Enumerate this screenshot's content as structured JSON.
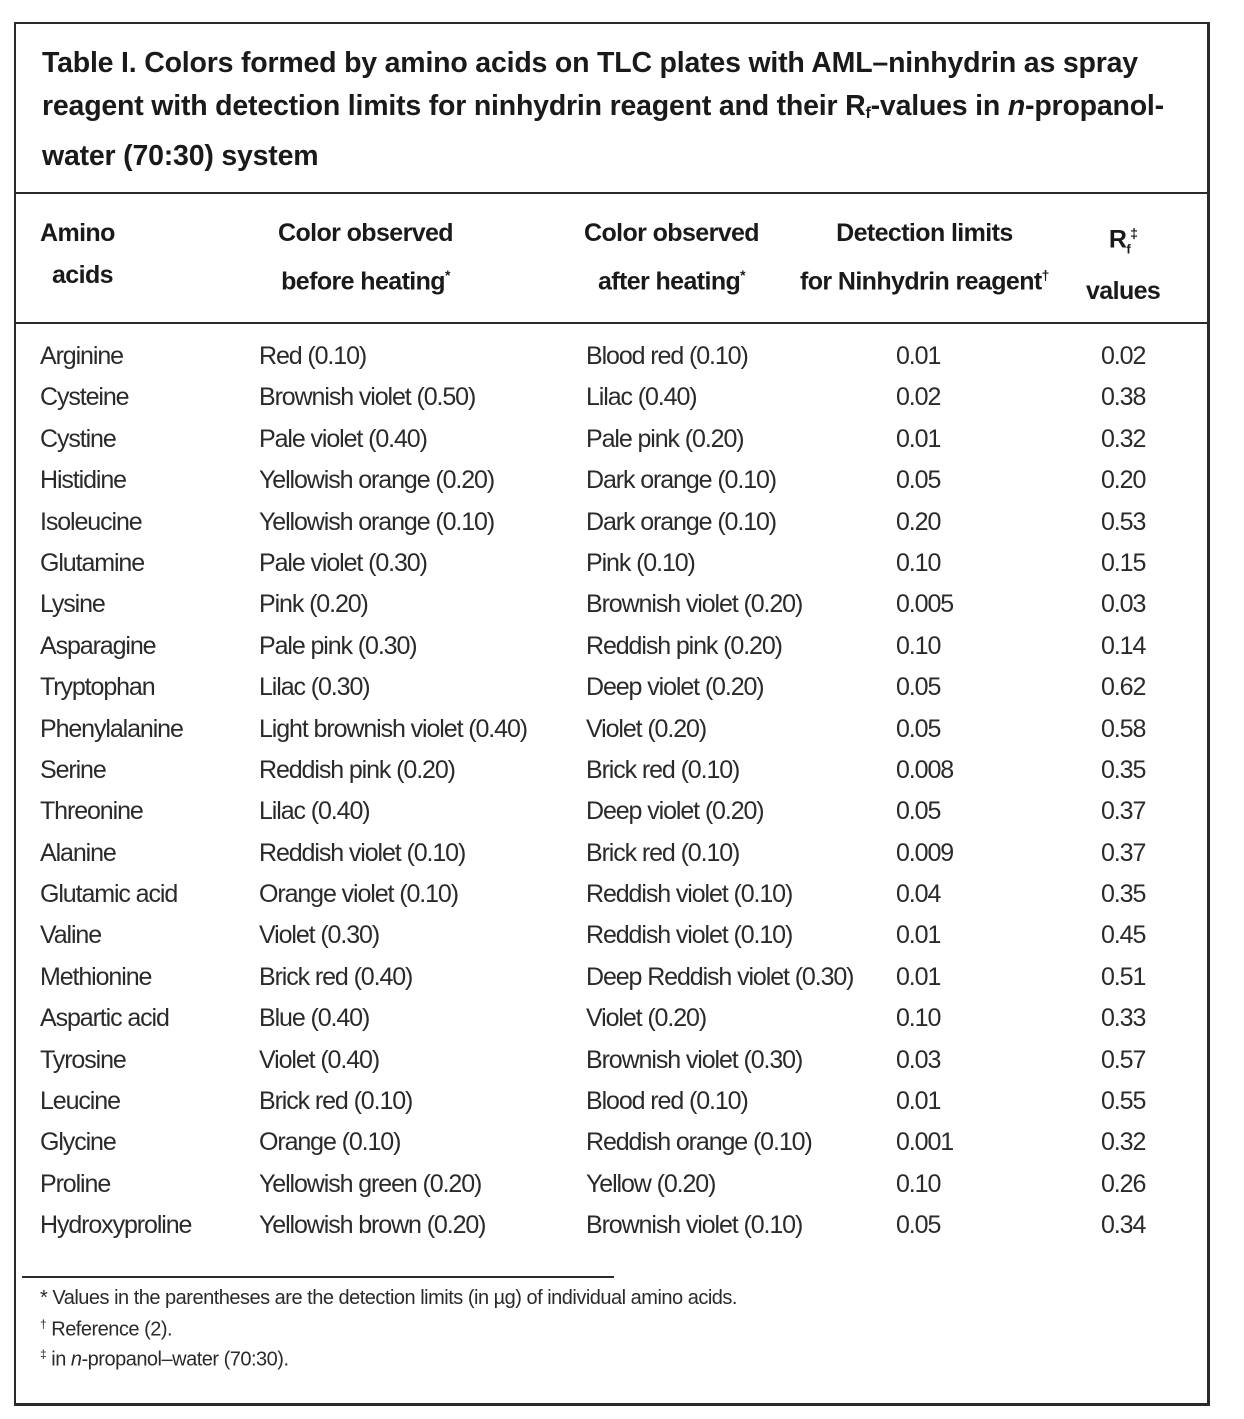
{
  "title": {
    "line1": "Table I. Colors formed by amino acids on TLC plates with AML–ninhydrin as spray",
    "line2a": "reagent with detection limits for ninhydrin reagent and their R",
    "line2sub": "f",
    "line2b": "-values in ",
    "line2i": "n",
    "line2c": "-propanol-",
    "line3": "water (70:30) system"
  },
  "headers": {
    "col1_l1": "Amino",
    "col1_l2": "acids",
    "col2_l1": "Color observed",
    "col2_l2": "before heating",
    "col2_mark": "*",
    "col3_l1": "Color observed",
    "col3_l2": "after heating",
    "col3_mark": "*",
    "col4_l1": "Detection limits",
    "col4_l2": "for Ninhydrin reagent",
    "col4_mark": "†",
    "col5_l1a": "R",
    "col5_l1sub": "f",
    "col5_mark": "‡",
    "col5_l2": "values"
  },
  "rows": [
    {
      "amino": "Arginine",
      "before": "Red (0.10)",
      "after": "Blood red (0.10)",
      "limit": "0.01",
      "rf": "0.02"
    },
    {
      "amino": "Cysteine",
      "before": "Brownish violet (0.50)",
      "after": "Lilac (0.40)",
      "limit": "0.02",
      "rf": "0.38"
    },
    {
      "amino": "Cystine",
      "before": "Pale violet (0.40)",
      "after": "Pale pink (0.20)",
      "limit": "0.01",
      "rf": "0.32"
    },
    {
      "amino": "Histidine",
      "before": "Yellowish orange (0.20)",
      "after": "Dark orange (0.10)",
      "limit": "0.05",
      "rf": "0.20"
    },
    {
      "amino": "Isoleucine",
      "before": "Yellowish orange (0.10)",
      "after": "Dark orange (0.10)",
      "limit": "0.20",
      "rf": "0.53"
    },
    {
      "amino": "Glutamine",
      "before": "Pale violet (0.30)",
      "after": "Pink (0.10)",
      "limit": "0.10",
      "rf": "0.15"
    },
    {
      "amino": "Lysine",
      "before": "Pink (0.20)",
      "after": "Brownish violet (0.20)",
      "limit": "0.005",
      "rf": "0.03"
    },
    {
      "amino": "Asparagine",
      "before": "Pale pink (0.30)",
      "after": "Reddish pink (0.20)",
      "limit": "0.10",
      "rf": "0.14"
    },
    {
      "amino": "Tryptophan",
      "before": "Lilac (0.30)",
      "after": "Deep violet (0.20)",
      "limit": "0.05",
      "rf": "0.62"
    },
    {
      "amino": "Phenylalanine",
      "before": "Light brownish violet (0.40)",
      "after": "Violet (0.20)",
      "limit": "0.05",
      "rf": "0.58"
    },
    {
      "amino": "Serine",
      "before": "Reddish pink (0.20)",
      "after": "Brick red (0.10)",
      "limit": "0.008",
      "rf": "0.35"
    },
    {
      "amino": "Threonine",
      "before": "Lilac (0.40)",
      "after": "Deep violet (0.20)",
      "limit": "0.05",
      "rf": "0.37"
    },
    {
      "amino": "Alanine",
      "before": "Reddish violet (0.10)",
      "after": "Brick red (0.10)",
      "limit": "0.009",
      "rf": "0.37"
    },
    {
      "amino": "Glutamic acid",
      "before": "Orange violet (0.10)",
      "after": "Reddish violet (0.10)",
      "limit": "0.04",
      "rf": "0.35"
    },
    {
      "amino": "Valine",
      "before": "Violet (0.30)",
      "after": "Reddish violet (0.10)",
      "limit": "0.01",
      "rf": "0.45"
    },
    {
      "amino": "Methionine",
      "before": "Brick red (0.40)",
      "after": "Deep Reddish violet (0.30)",
      "limit": "0.01",
      "rf": "0.51"
    },
    {
      "amino": "Aspartic acid",
      "before": "Blue (0.40)",
      "after": "Violet (0.20)",
      "limit": "0.10",
      "rf": "0.33"
    },
    {
      "amino": "Tyrosine",
      "before": "Violet (0.40)",
      "after": "Brownish violet (0.30)",
      "limit": "0.03",
      "rf": "0.57"
    },
    {
      "amino": "Leucine",
      "before": "Brick red (0.10)",
      "after": "Blood red (0.10)",
      "limit": "0.01",
      "rf": "0.55"
    },
    {
      "amino": "Glycine",
      "before": "Orange (0.10)",
      "after": "Reddish orange (0.10)",
      "limit": "0.001",
      "rf": "0.32"
    },
    {
      "amino": "Proline",
      "before": "Yellowish green (0.20)",
      "after": "Yellow (0.20)",
      "limit": "0.10",
      "rf": "0.26"
    },
    {
      "amino": "Hydroxyproline",
      "before": "Yellowish brown (0.20)",
      "after": "Brownish violet (0.10)",
      "limit": "0.05",
      "rf": "0.34"
    }
  ],
  "footnotes": {
    "f1": "* Values in the parentheses are the detection limits (in µg) of individual amino acids.",
    "f2_mark": "†",
    "f2": " Reference (2).",
    "f3_mark": "‡",
    "f3a": " in ",
    "f3i": "n",
    "f3b": "-propanol–water (70:30)."
  }
}
